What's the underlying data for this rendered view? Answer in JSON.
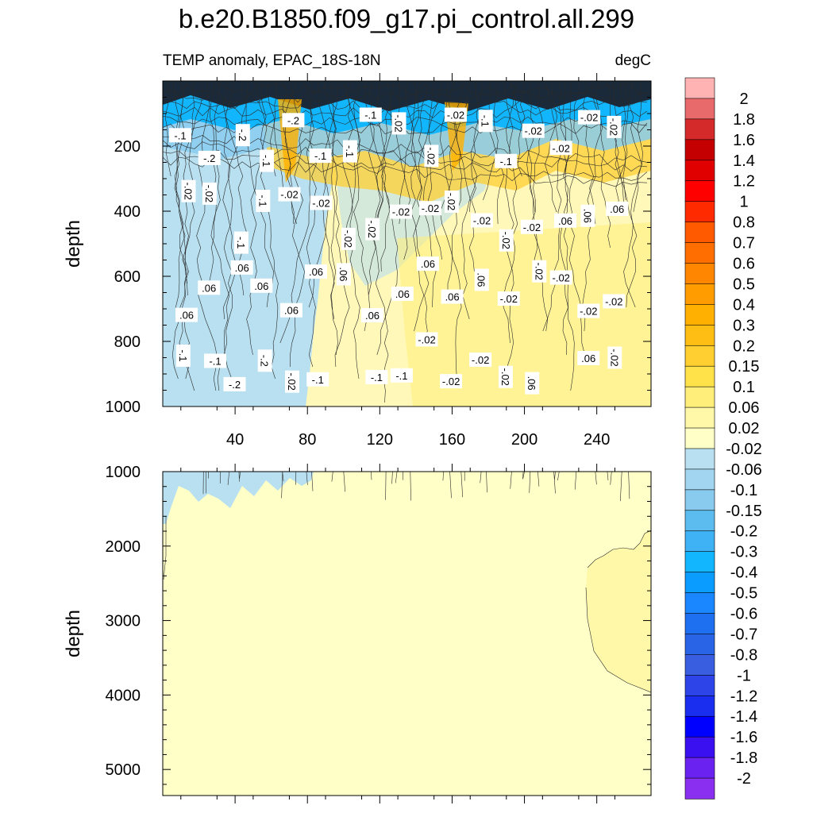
{
  "chart_data": {
    "type": "heatmap",
    "title": "b.e20.B1850.f09_g17.pi_control.all.299",
    "subtitle_left": "TEMP anomaly, EPAC_18S-18N",
    "subtitle_right": "degC",
    "xlabel": "",
    "ylabel": "depth",
    "panels": [
      {
        "name": "upper",
        "ylim": [
          1000,
          0
        ],
        "y_ticks": [
          200,
          400,
          600,
          800,
          1000
        ],
        "x_ticks": [
          40,
          80,
          120,
          160,
          200,
          240
        ],
        "xlim": [
          0,
          270
        ],
        "description_values": {
          "surface_layer_min": -0.2,
          "surface_layer_max": 0.2,
          "west_region_anomaly": -0.04,
          "east_region_anomaly": 0.04
        }
      },
      {
        "name": "lower",
        "ylim": [
          5350,
          1000
        ],
        "y_ticks": [
          1000,
          2000,
          3000,
          4000,
          5000
        ],
        "x_ticks": [
          40,
          80,
          120,
          160,
          200,
          240
        ],
        "xlim": [
          0,
          270
        ],
        "description_values": {
          "background_anomaly": 0.0,
          "east_deep_patch_anomaly": 0.04,
          "east_deep_patch_x_range": [
            229,
            270
          ],
          "east_deep_patch_depth_range": [
            1700,
            3950
          ]
        }
      }
    ],
    "colorbar": {
      "levels": [
        "2",
        "1.8",
        "1.6",
        "1.4",
        "1.2",
        "1",
        "0.8",
        "0.7",
        "0.6",
        "0.5",
        "0.4",
        "0.3",
        "0.2",
        "0.15",
        "0.1",
        "0.06",
        "0.02",
        "-0.02",
        "-0.06",
        "-0.1",
        "-0.15",
        "-0.2",
        "-0.3",
        "-0.4",
        "-0.5",
        "-0.6",
        "-0.7",
        "-0.8",
        "-1",
        "-1.2",
        "-1.4",
        "-1.6",
        "-1.8",
        "-2"
      ],
      "colors": [
        "#ffb3b3",
        "#e86a6a",
        "#d42a2a",
        "#c40000",
        "#e00000",
        "#ff0000",
        "#ff2a00",
        "#ff5a00",
        "#ff6e00",
        "#ff8600",
        "#ff9d00",
        "#ffb000",
        "#ffbe14",
        "#ffcf32",
        "#ffe24a",
        "#ffee7a",
        "#fff8a8",
        "#ffffc8",
        "#b8e0f0",
        "#a2d6f0",
        "#88cbee",
        "#5cbcf0",
        "#3eb2f5",
        "#12b6ff",
        "#0a9cff",
        "#1a86ff",
        "#1e70f0",
        "#2a64e6",
        "#3a5ee0",
        "#2c44e8",
        "#1a2ef0",
        "#0000ff",
        "#3a10f0",
        "#6a22f0",
        "#8a2ef0"
      ]
    },
    "contour_labels_upper": [
      "-.1",
      "-.2",
      "-.2",
      "-.1",
      "-.2",
      "-.1",
      "-.1",
      "-.1",
      "-.02",
      "-.02",
      "-.02",
      "-.1",
      "-.1",
      "-.02",
      "-.02",
      "-.02",
      "-.02",
      "-.02",
      "-.02",
      "-.1",
      "-.1",
      "-.02",
      "-.02",
      "-.02",
      "-.02",
      "-.02",
      "-.02",
      "-.02",
      "-.02",
      "-.02",
      "-.02",
      ".06",
      ".06",
      ".06",
      ".06",
      ".06",
      ".06",
      ".06",
      ".06",
      ".06",
      ".06",
      ".06",
      ".06",
      ".06",
      ".06",
      ".06",
      "-.02",
      "-.02",
      "-.02",
      "-.02",
      "-.02",
      "-.1",
      "-.1",
      "-.2",
      "-.2",
      "-.02",
      "-.1",
      "-.1",
      "-.1",
      "-.1",
      "-.02",
      "-.02",
      "-.02",
      "-.02",
      ".06",
      ".06",
      ".06",
      "-.02",
      "-.02",
      "-.02"
    ]
  }
}
